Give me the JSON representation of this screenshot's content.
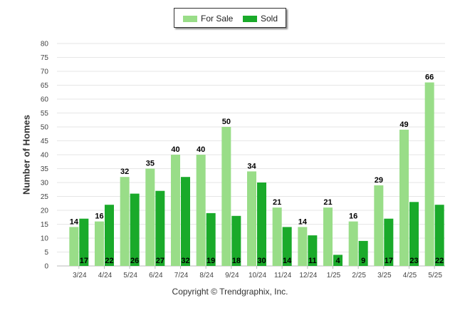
{
  "chart_data": {
    "type": "bar",
    "categories": [
      "3/24",
      "4/24",
      "5/24",
      "6/24",
      "7/24",
      "8/24",
      "9/24",
      "10/24",
      "11/24",
      "12/24",
      "1/25",
      "2/25",
      "3/25",
      "4/25",
      "5/25"
    ],
    "series": [
      {
        "name": "For Sale",
        "color": "#99dd88",
        "values": [
          14,
          16,
          32,
          35,
          40,
          40,
          50,
          34,
          21,
          14,
          21,
          16,
          29,
          49,
          66
        ]
      },
      {
        "name": "Sold",
        "color": "#1aaa2a",
        "values": [
          17,
          22,
          26,
          27,
          32,
          19,
          18,
          30,
          14,
          11,
          4,
          9,
          17,
          23,
          22
        ]
      }
    ],
    "ylabel": "Number of Homes",
    "ylim": [
      0,
      80
    ],
    "yticks": [
      0,
      5,
      10,
      15,
      20,
      25,
      30,
      35,
      40,
      45,
      50,
      55,
      60,
      65,
      70,
      75,
      80
    ],
    "grid": true,
    "legend": "top-center"
  },
  "footer": {
    "copyright": "Copyright © Trendgraphix, Inc."
  }
}
